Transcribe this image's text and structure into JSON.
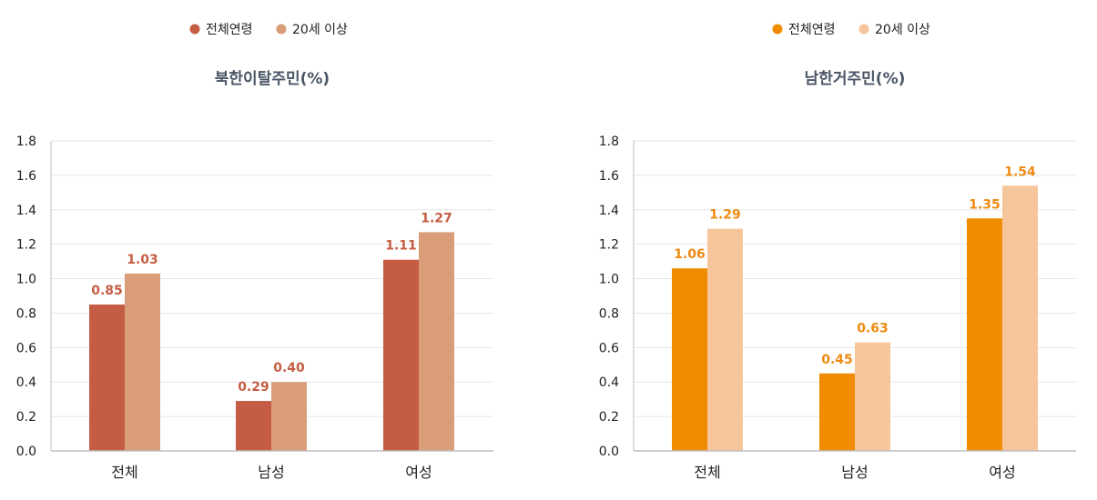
{
  "chart_data": [
    {
      "type": "bar",
      "title": "북한이탈주민(%)",
      "categories": [
        "전체",
        "남성",
        "여성"
      ],
      "series": [
        {
          "name": "전체연령",
          "values": [
            0.85,
            0.29,
            1.11
          ],
          "value_labels": [
            "0.85",
            "0.29",
            "1.11"
          ],
          "color": "#c55d44"
        },
        {
          "name": "20세 이상",
          "values": [
            1.03,
            0.4,
            1.27
          ],
          "value_labels": [
            "1.03",
            "0.40",
            "1.27"
          ],
          "color": "#d99d7a"
        }
      ],
      "value_label_color": "#c55d44",
      "ylim": [
        0,
        1.8
      ],
      "yticks": [
        "0.0",
        "0.2",
        "0.4",
        "0.6",
        "0.8",
        "1.0",
        "1.2",
        "1.4",
        "1.6",
        "1.8"
      ],
      "grid": true,
      "legend": "top"
    },
    {
      "type": "bar",
      "title": "남한거주민(%)",
      "categories": [
        "전체",
        "남성",
        "여성"
      ],
      "series": [
        {
          "name": "전체연령",
          "values": [
            1.06,
            0.45,
            1.35
          ],
          "value_labels": [
            "1.06",
            "0.45",
            "1.35"
          ],
          "color": "#f08c00"
        },
        {
          "name": "20세 이상",
          "values": [
            1.29,
            0.63,
            1.54
          ],
          "value_labels": [
            "1.29",
            "0.63",
            "1.54"
          ],
          "color": "#f7c59b"
        }
      ],
      "value_label_color": "#ee8a12",
      "ylim": [
        0,
        1.8
      ],
      "yticks": [
        "0.0",
        "0.2",
        "0.4",
        "0.6",
        "0.8",
        "1.0",
        "1.2",
        "1.4",
        "1.6",
        "1.8"
      ],
      "grid": true,
      "legend": "top"
    }
  ]
}
